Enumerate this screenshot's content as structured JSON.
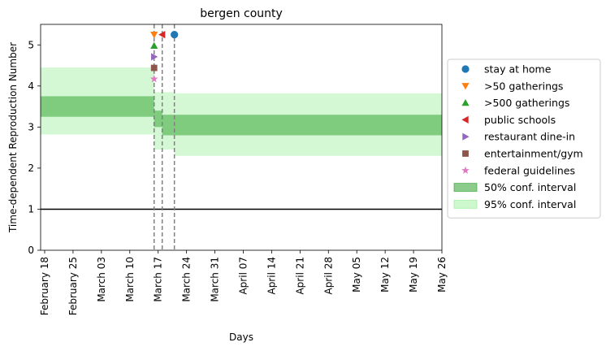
{
  "chart_data": {
    "type": "line",
    "title": "bergen county",
    "xlabel": "Days",
    "ylabel": "Time-dependent Reproduction Number",
    "xlim": [
      "2020-02-17",
      "2020-05-26"
    ],
    "ylim": [
      0,
      5.5
    ],
    "yticks": [
      0,
      1,
      2,
      3,
      4,
      5
    ],
    "xticks": [
      {
        "date": "2020-02-18",
        "label": "February 18"
      },
      {
        "date": "2020-02-25",
        "label": "February 25"
      },
      {
        "date": "2020-03-03",
        "label": "March 03"
      },
      {
        "date": "2020-03-10",
        "label": "March 10"
      },
      {
        "date": "2020-03-17",
        "label": "March 17"
      },
      {
        "date": "2020-03-24",
        "label": "March 24"
      },
      {
        "date": "2020-03-31",
        "label": "March 31"
      },
      {
        "date": "2020-04-07",
        "label": "April 07"
      },
      {
        "date": "2020-04-14",
        "label": "April 14"
      },
      {
        "date": "2020-04-21",
        "label": "April 21"
      },
      {
        "date": "2020-04-28",
        "label": "April 28"
      },
      {
        "date": "2020-05-05",
        "label": "May 05"
      },
      {
        "date": "2020-05-12",
        "label": "May 12"
      },
      {
        "date": "2020-05-19",
        "label": "May 19"
      },
      {
        "date": "2020-05-26",
        "label": "May 26"
      }
    ],
    "reference_line": {
      "y": 1,
      "color": "#000000"
    },
    "grid": false,
    "legend_position": "right",
    "intervals": [
      {
        "name": "50% conf. interval",
        "color": "#2ca02c",
        "opacity": 0.5,
        "edge_color": "#2ca02c",
        "segments": [
          {
            "x_start": "2020-02-17",
            "x_end": "2020-03-16",
            "low": 3.25,
            "high": 3.75
          },
          {
            "x_start": "2020-03-16",
            "x_end": "2020-03-18",
            "low": 3.0,
            "high": 3.4
          },
          {
            "x_start": "2020-03-18",
            "x_end": "2020-05-26",
            "low": 2.8,
            "high": 3.3
          }
        ]
      },
      {
        "name": "95% conf. interval",
        "color": "#90ee90",
        "opacity": 0.4,
        "edge_color": "#90ee90",
        "segments": [
          {
            "x_start": "2020-02-17",
            "x_end": "2020-03-16",
            "low": 2.82,
            "high": 4.45
          },
          {
            "x_start": "2020-03-16",
            "x_end": "2020-03-21",
            "low": 2.45,
            "high": 3.85
          },
          {
            "x_start": "2020-03-21",
            "x_end": "2020-05-26",
            "low": 2.3,
            "high": 3.82
          }
        ]
      }
    ],
    "vertical_lines": [
      {
        "x": "2020-03-16",
        "color": "#808080",
        "style": "dashed"
      },
      {
        "x": "2020-03-18",
        "color": "#808080",
        "style": "dashed"
      },
      {
        "x": "2020-03-21",
        "color": "#808080",
        "style": "dashed"
      }
    ],
    "series": [
      {
        "name": "stay at home",
        "marker": "circle",
        "color": "#1f77b4",
        "x": "2020-03-21",
        "y": 5.25
      },
      {
        "name": ">50 gatherings",
        "marker": "triangle-down",
        "color": "#ff7f0e",
        "x": "2020-03-16",
        "y": 5.25
      },
      {
        "name": ">500 gatherings",
        "marker": "triangle-up",
        "color": "#2ca02c",
        "x": "2020-03-16",
        "y": 4.98
      },
      {
        "name": "public schools",
        "marker": "triangle-left",
        "color": "#d62728",
        "x": "2020-03-18",
        "y": 5.25
      },
      {
        "name": "restaurant dine-in",
        "marker": "triangle-right",
        "color": "#9467bd",
        "x": "2020-03-16",
        "y": 4.71
      },
      {
        "name": "entertainment/gym",
        "marker": "square",
        "color": "#8c564b",
        "x": "2020-03-16",
        "y": 4.44
      },
      {
        "name": "federal guidelines",
        "marker": "star",
        "color": "#e377c2",
        "x": "2020-03-16",
        "y": 4.17
      }
    ]
  }
}
